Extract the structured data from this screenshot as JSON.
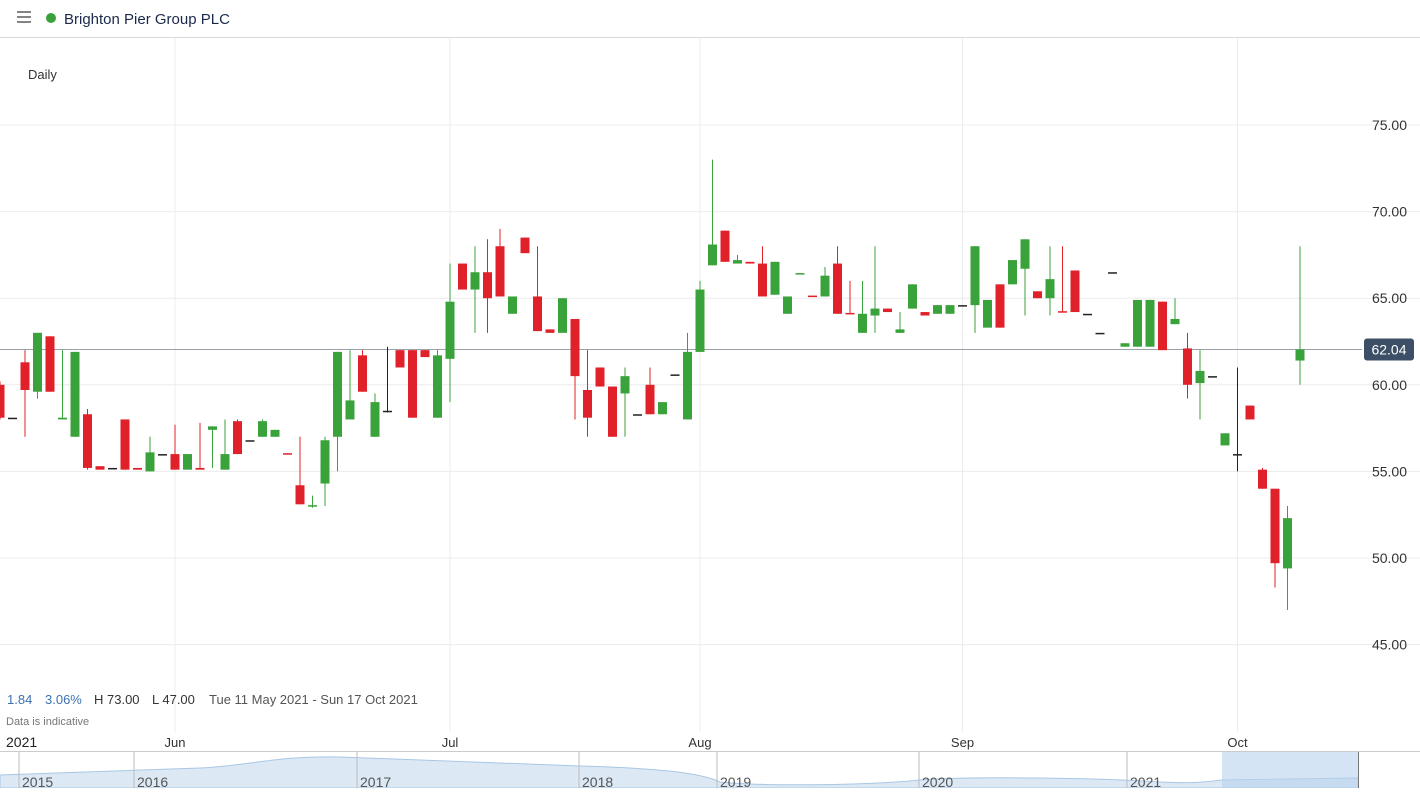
{
  "header": {
    "title": "Brighton Pier Group PLC"
  },
  "chart_data": {
    "type": "candlestick",
    "interval": "Daily",
    "stats": {
      "change": "1.84",
      "change_pct": "3.06%",
      "high": "H 73.00",
      "low": "L 47.00",
      "range": "Tue 11 May 2021 - Sun 17 Oct 2021",
      "note": "Data is indicative"
    },
    "last_price": 62.04,
    "last_price_label": "62.04",
    "up_color": "#3aa23a",
    "down_color": "#e0212a",
    "flat_color": "#222222",
    "ylim": [
      40,
      80
    ],
    "yticks": [
      {
        "value": 45,
        "label": "45.00"
      },
      {
        "value": 50,
        "label": "50.00"
      },
      {
        "value": 55,
        "label": "55.00"
      },
      {
        "value": 60,
        "label": "60.00"
      },
      {
        "value": 65,
        "label": "65.00"
      },
      {
        "value": 70,
        "label": "70.00"
      },
      {
        "value": 75,
        "label": "75.00"
      }
    ],
    "year_label": "2021",
    "xticks": [
      {
        "value": 14,
        "label": "Jun"
      },
      {
        "value": 36,
        "label": "Jul"
      },
      {
        "value": 56,
        "label": "Aug"
      },
      {
        "value": 77,
        "label": "Sep"
      },
      {
        "value": 99,
        "label": "Oct"
      }
    ],
    "open": [
      60.0,
      58.1,
      61.3,
      59.6,
      62.8,
      58.0,
      57.0,
      58.3,
      55.3,
      55.2,
      58.0,
      55.2,
      55.0,
      56.0,
      56.0,
      55.1,
      55.2,
      57.4,
      55.1,
      57.9,
      56.8,
      57.0,
      57.0,
      56.05,
      54.2,
      53.0,
      54.3,
      57.0,
      58.0,
      61.7,
      57.0,
      58.5,
      62.0,
      62.0,
      62.0,
      58.1,
      61.5,
      67.0,
      65.5,
      66.5,
      68.0,
      64.1,
      68.5,
      65.1,
      63.2,
      63.0,
      63.8,
      59.7,
      61.0,
      59.9,
      59.5,
      58.3,
      60.0,
      58.3,
      60.6,
      58.0,
      61.9,
      66.9,
      68.9,
      67.0,
      67.1,
      67.0,
      65.2,
      64.1,
      66.4,
      65.15,
      65.1,
      67.0,
      64.15,
      63.0,
      64.0,
      64.4,
      63.0,
      64.4,
      64.2,
      64.1,
      64.1,
      64.6,
      64.6,
      63.3,
      65.8,
      65.8,
      66.7,
      65.4,
      65.0,
      64.25,
      66.6,
      64.1,
      63.0,
      66.5,
      62.2,
      62.2,
      62.2,
      64.8,
      63.5,
      62.1,
      60.1,
      60.5,
      56.5,
      56.0,
      58.8,
      55.1,
      54.0,
      49.4,
      61.4
    ],
    "high": [
      60.2,
      58.1,
      62.0,
      63.0,
      62.8,
      62.0,
      61.9,
      58.6,
      55.3,
      55.2,
      58.0,
      55.2,
      57.0,
      56.0,
      57.7,
      56.0,
      57.8,
      57.6,
      58.0,
      58.0,
      56.8,
      58.0,
      57.4,
      56.05,
      57.0,
      53.6,
      57.0,
      61.9,
      62.0,
      62.0,
      59.5,
      62.2,
      62.0,
      62.0,
      62.0,
      62.0,
      67.0,
      67.0,
      68.0,
      68.4,
      69.0,
      65.1,
      68.5,
      68.0,
      63.2,
      65.0,
      63.8,
      62.0,
      61.0,
      59.9,
      61.0,
      58.3,
      61.0,
      59.0,
      60.6,
      63.0,
      66.0,
      73.0,
      68.9,
      67.5,
      67.1,
      68.0,
      67.1,
      65.1,
      66.45,
      65.15,
      66.8,
      68.0,
      66.0,
      66.0,
      68.0,
      64.4,
      64.2,
      65.8,
      64.2,
      64.6,
      64.6,
      64.6,
      68.0,
      64.9,
      65.8,
      67.2,
      68.4,
      65.4,
      68.0,
      68.0,
      66.6,
      64.1,
      63.0,
      66.5,
      62.4,
      64.9,
      64.9,
      64.8,
      65.0,
      63.0,
      62.0,
      60.5,
      57.2,
      61.0,
      58.8,
      55.2,
      54.0,
      53.0,
      68.0
    ],
    "low": [
      58.0,
      58.1,
      57.0,
      59.2,
      59.6,
      58.0,
      57.0,
      55.1,
      55.1,
      55.2,
      55.1,
      55.1,
      55.0,
      56.0,
      55.1,
      55.1,
      55.1,
      55.2,
      55.1,
      56.0,
      56.8,
      57.0,
      57.0,
      56.0,
      53.1,
      52.9,
      53.0,
      55.0,
      58.0,
      59.6,
      57.0,
      58.4,
      61.0,
      58.1,
      61.6,
      58.1,
      59.0,
      65.5,
      63.0,
      63.0,
      65.1,
      64.1,
      67.6,
      63.1,
      63.0,
      63.0,
      58.0,
      57.0,
      59.9,
      57.0,
      57.0,
      58.3,
      58.3,
      58.3,
      60.6,
      58.0,
      61.9,
      66.9,
      67.1,
      67.0,
      67.0,
      65.1,
      65.2,
      64.1,
      66.4,
      65.1,
      65.1,
      64.1,
      64.1,
      63.0,
      63.0,
      64.2,
      63.0,
      64.4,
      64.0,
      64.1,
      64.1,
      64.6,
      63.0,
      63.3,
      63.3,
      65.8,
      64.0,
      65.0,
      64.0,
      64.2,
      64.2,
      64.1,
      63.0,
      66.5,
      62.2,
      62.2,
      62.2,
      62.0,
      63.5,
      59.2,
      58.0,
      60.5,
      56.5,
      55.0,
      58.0,
      54.0,
      48.3,
      47.0,
      60.0
    ],
    "close": [
      58.1,
      58.1,
      59.7,
      63.0,
      59.6,
      58.1,
      61.9,
      55.2,
      55.1,
      55.2,
      55.1,
      55.1,
      56.1,
      56.0,
      55.1,
      56.0,
      55.1,
      57.6,
      56.0,
      56.0,
      56.8,
      57.9,
      57.4,
      56.0,
      53.1,
      53.05,
      56.8,
      61.9,
      59.1,
      59.6,
      59.0,
      58.5,
      61.0,
      58.1,
      61.6,
      61.7,
      64.8,
      65.5,
      66.5,
      65.0,
      65.1,
      65.1,
      67.6,
      63.1,
      63.0,
      65.0,
      60.5,
      58.1,
      59.9,
      57.0,
      60.5,
      58.3,
      58.3,
      59.0,
      60.6,
      61.9,
      65.5,
      68.1,
      67.1,
      67.2,
      67.0,
      65.1,
      67.1,
      65.1,
      66.45,
      65.1,
      66.3,
      64.1,
      64.1,
      64.1,
      64.4,
      64.2,
      63.2,
      65.8,
      64.0,
      64.6,
      64.6,
      64.6,
      68.0,
      64.9,
      63.3,
      67.2,
      68.4,
      65.0,
      66.1,
      64.2,
      64.2,
      64.1,
      63.0,
      66.5,
      62.4,
      64.9,
      64.9,
      62.0,
      63.8,
      60.0,
      60.8,
      60.5,
      57.2,
      56.0,
      58.0,
      54.0,
      49.7,
      52.3,
      62.04
    ]
  },
  "navigator": {
    "years": [
      "2015",
      "2016",
      "2017",
      "2018",
      "2019",
      "2020",
      "2021"
    ]
  }
}
